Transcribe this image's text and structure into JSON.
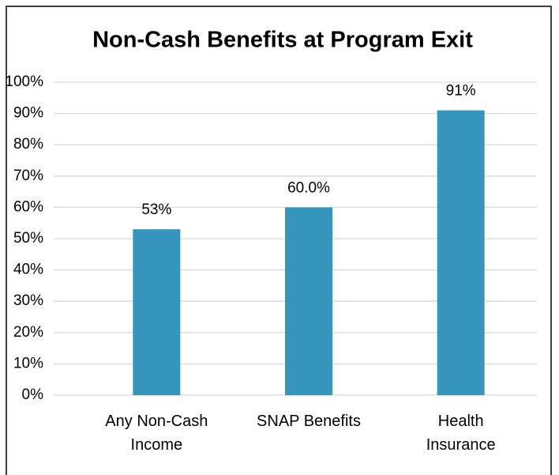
{
  "chart_data": {
    "type": "bar",
    "title": "Non-Cash Benefits at Program Exit",
    "categories": [
      "Any Non-Cash\nIncome",
      "SNAP Benefits",
      "Health\nInsurance"
    ],
    "values": [
      53,
      60,
      91
    ],
    "value_labels": [
      "53%",
      "60.0%",
      "91%"
    ],
    "color": "#3595bc",
    "ylim": [
      0,
      100
    ],
    "yticks": [
      {
        "value": 0,
        "label": "0%"
      },
      {
        "value": 10,
        "label": "10%"
      },
      {
        "value": 20,
        "label": "20%"
      },
      {
        "value": 30,
        "label": "30%"
      },
      {
        "value": 40,
        "label": "40%"
      },
      {
        "value": 50,
        "label": "50%"
      },
      {
        "value": 60,
        "label": "60%"
      },
      {
        "value": 70,
        "label": "70%"
      },
      {
        "value": 80,
        "label": "80%"
      },
      {
        "value": 90,
        "label": "90%"
      },
      {
        "value": 100,
        "label": "100%"
      }
    ],
    "grid": true
  }
}
